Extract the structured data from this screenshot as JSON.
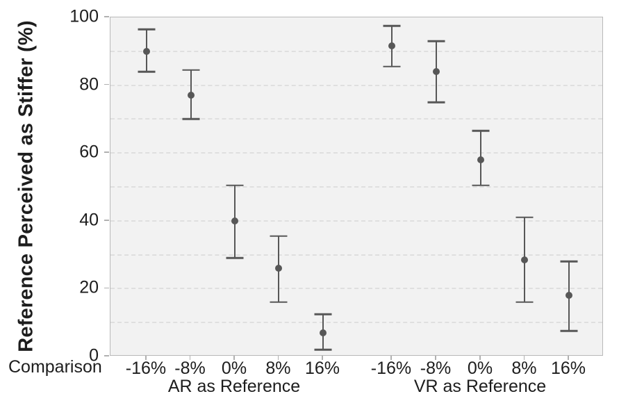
{
  "chart_data": {
    "type": "scatter",
    "subtype": "point-estimates-with-error-bars",
    "title": "",
    "ylabel": "Reference Perceived as Stiffer (%)",
    "x_axis_prefix_label": "Comparison",
    "ylim": [
      0,
      100
    ],
    "yticks": [
      0,
      20,
      40,
      60,
      80,
      100
    ],
    "grid": "dashed horizontal gridlines every 10 units",
    "legend_position": "none",
    "groups": [
      {
        "label": "AR as Reference",
        "categories": [
          "-16%",
          "-8%",
          "0%",
          "8%",
          "16%"
        ],
        "points": [
          {
            "category": "-16%",
            "mean": 90,
            "lo": 84,
            "hi": 96.5
          },
          {
            "category": "-8%",
            "mean": 77,
            "lo": 70,
            "hi": 84.5
          },
          {
            "category": "0%",
            "mean": 40,
            "lo": 29,
            "hi": 50.5
          },
          {
            "category": "8%",
            "mean": 26,
            "lo": 16,
            "hi": 35.5
          },
          {
            "category": "16%",
            "mean": 7,
            "lo": 2,
            "hi": 12.5
          }
        ]
      },
      {
        "label": "VR as Reference",
        "categories": [
          "-16%",
          "-8%",
          "0%",
          "8%",
          "16%"
        ],
        "points": [
          {
            "category": "-16%",
            "mean": 91.5,
            "lo": 85.5,
            "hi": 97.5
          },
          {
            "category": "-8%",
            "mean": 84,
            "lo": 75,
            "hi": 93
          },
          {
            "category": "0%",
            "mean": 58,
            "lo": 50.5,
            "hi": 66.5
          },
          {
            "category": "8%",
            "mean": 28.5,
            "lo": 16,
            "hi": 41
          },
          {
            "category": "16%",
            "mean": 18,
            "lo": 7.5,
            "hi": 28
          }
        ]
      }
    ],
    "colors": {
      "marker": "#575757",
      "plot_background": "#f2f2f2",
      "gridline": "#dfdfdf",
      "axis_border": "#b8b8b8",
      "text": "#1d1d1d"
    }
  }
}
